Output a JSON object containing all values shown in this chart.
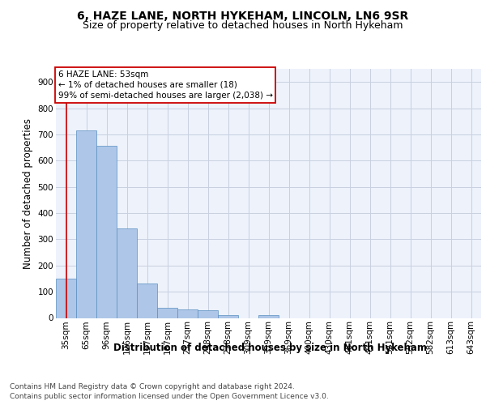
{
  "title_line1": "6, HAZE LANE, NORTH HYKEHAM, LINCOLN, LN6 9SR",
  "title_line2": "Size of property relative to detached houses in North Hykeham",
  "xlabel": "Distribution of detached houses by size in North Hykeham",
  "ylabel": "Number of detached properties",
  "categories": [
    "35sqm",
    "65sqm",
    "96sqm",
    "126sqm",
    "157sqm",
    "187sqm",
    "217sqm",
    "248sqm",
    "278sqm",
    "309sqm",
    "339sqm",
    "369sqm",
    "400sqm",
    "430sqm",
    "461sqm",
    "491sqm",
    "521sqm",
    "552sqm",
    "582sqm",
    "613sqm",
    "643sqm"
  ],
  "values": [
    150,
    715,
    655,
    340,
    130,
    40,
    33,
    28,
    12,
    0,
    10,
    0,
    0,
    0,
    0,
    0,
    0,
    0,
    0,
    0,
    0
  ],
  "bar_color": "#aec6e8",
  "bar_edge_color": "#5a8fc0",
  "vline_color": "#cc0000",
  "annotation_text": "6 HAZE LANE: 53sqm\n← 1% of detached houses are smaller (18)\n99% of semi-detached houses are larger (2,038) →",
  "annotation_box_color": "#ffffff",
  "annotation_box_edge_color": "#cc0000",
  "footer_line1": "Contains HM Land Registry data © Crown copyright and database right 2024.",
  "footer_line2": "Contains public sector information licensed under the Open Government Licence v3.0.",
  "ylim": [
    0,
    950
  ],
  "yticks": [
    0,
    100,
    200,
    300,
    400,
    500,
    600,
    700,
    800,
    900
  ],
  "bg_color": "#edf2fb",
  "grid_color": "#c8d0e0",
  "title1_fontsize": 10,
  "title2_fontsize": 9,
  "tick_fontsize": 7.5,
  "ann_fontsize": 7.5,
  "label_fontsize": 8.5,
  "footer_fontsize": 6.5
}
